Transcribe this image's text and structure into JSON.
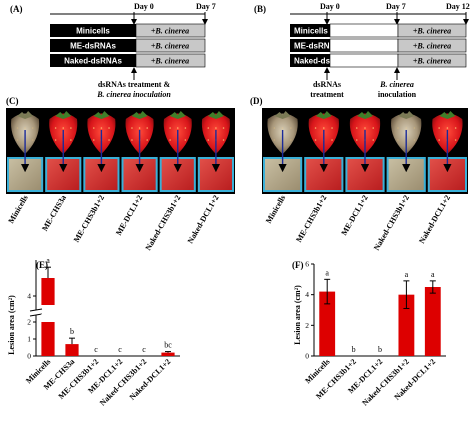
{
  "panelA": {
    "label": "(A)",
    "day_start": "Day 0",
    "day_end": "Day 7",
    "rows": [
      {
        "name": "Minicells",
        "treatment": "+B. cinerea"
      },
      {
        "name": "ME-dsRNAs",
        "treatment": "+B. cinerea"
      },
      {
        "name": "Naked-dsRNAs",
        "treatment": "+B. cinerea"
      }
    ],
    "note_line1": "dsRNAs treatment &",
    "note_line2": "B. cinerea inoculation"
  },
  "panelB": {
    "label": "(B)",
    "day_start": "Day 0",
    "day_mid": "Day 7",
    "day_end": "Day 12",
    "rows": [
      {
        "name": "Minicells",
        "treatment": "+B. cinerea"
      },
      {
        "name": "ME-dsRNAs",
        "treatment": "+B. cinerea"
      },
      {
        "name": "Naked-dsRNAs",
        "treatment": "+B. cinerea"
      }
    ],
    "note_left_1": "dsRNAs",
    "note_left_2": "treatment",
    "note_right_1": "B. cinerea",
    "note_right_2": "inoculation"
  },
  "panelC": {
    "label": "(C)",
    "samples": [
      "Minicells",
      "ME-CHS3a",
      "ME-CHS3b1+2",
      "ME-DCL1+2",
      "Naked-CHS3b1+2",
      "Naked-DCL1+2"
    ]
  },
  "panelD": {
    "label": "(D)",
    "samples": [
      "Minicells",
      "ME-CHS3b1+2",
      "ME-DCL1+2",
      "Naked-CHS3b1+2",
      "Naked-DCL1+2"
    ]
  },
  "colors": {
    "bar": "#dd0000",
    "gray_box": "#c8c8c8",
    "photo_border": "#3ab0d8",
    "arrow": "#1a2a9a"
  },
  "chart_data": [
    {
      "type": "bar",
      "panel": "(E)",
      "ylabel": "Lesion area (cm²)",
      "categories": [
        "Minicells",
        "ME-CHS3a",
        "ME-CHS3b1+2",
        "ME-DCL1+2",
        "Naked-CHS3b1+2",
        "Naked-DCL1+2"
      ],
      "values": [
        5.0,
        0.7,
        0.0,
        0.0,
        0.0,
        0.2
      ],
      "errors": [
        0.6,
        0.35,
        0.0,
        0.0,
        0.0,
        0.06
      ],
      "letters": [
        "a",
        "b",
        "c",
        "c",
        "c",
        "bc"
      ],
      "yticks": [
        0,
        1,
        2,
        4
      ],
      "axis_break": [
        2.1,
        3.5
      ]
    },
    {
      "type": "bar",
      "panel": "(F)",
      "ylabel": "Lesion area (cm²)",
      "categories": [
        "Minicells",
        "ME-CHS3b1+2",
        "ME-DCL1+2",
        "Naked-CHS3b1+2",
        "Naked-DCL1+2"
      ],
      "values": [
        4.2,
        0.0,
        0.0,
        4.0,
        4.5
      ],
      "errors": [
        0.8,
        0.0,
        0.0,
        0.9,
        0.4
      ],
      "letters": [
        "a",
        "b",
        "b",
        "a",
        "a"
      ],
      "yticks": [
        0,
        2,
        4,
        6
      ],
      "ylim": [
        0,
        6
      ]
    }
  ]
}
